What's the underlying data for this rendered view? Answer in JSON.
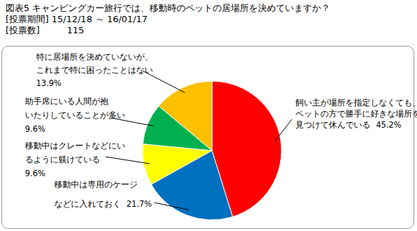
{
  "chart_data": {
    "type": "pie",
    "title": "図表5 キャンピングカー旅行では、移動時のペットの居場所を決めていますか？",
    "subtitle": [
      "[投票期間] 15/12/18 ～ 16/01/17",
      "[投票数]　　　115"
    ],
    "categories": [
      "飼い主が場所を指定しなくても、ペットの方で勝手に好きな場所を見つけて休んでいる",
      "移動中は専用のケージなどに入れておく",
      "移動中はクレートなどにいるように躾けている",
      "助手席にいる人間が抱いたりしていることが多い",
      "特に居場所を決めていないが、これまで特に困ったことはない"
    ],
    "values": [
      45.2,
      21.7,
      9.6,
      9.6,
      13.9
    ],
    "value_labels": [
      "45.2%",
      "21.7%",
      "9.6%",
      "9.6%",
      "13.9%"
    ],
    "colors": [
      "#ff0000",
      "#0070c0",
      "#ffff00",
      "#00b050",
      "#ffc000"
    ],
    "data_labels": true
  }
}
